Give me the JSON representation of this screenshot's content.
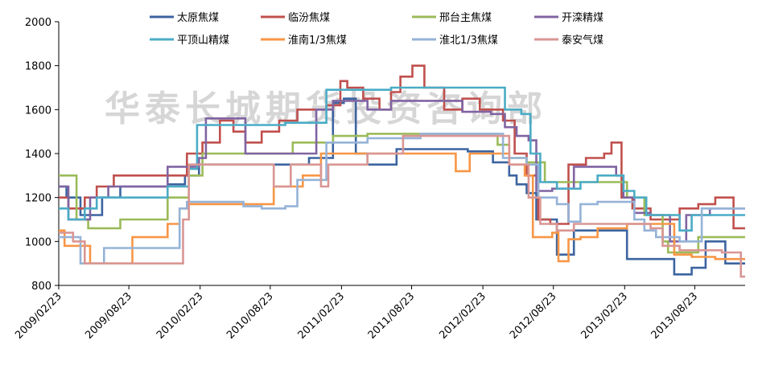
{
  "watermark": "华泰长城期货投资咨询部",
  "chart_data": {
    "type": "line",
    "step": true,
    "ylim": [
      800,
      2000
    ],
    "yticks": [
      800,
      1000,
      1200,
      1400,
      1600,
      1800,
      2000
    ],
    "xlim": [
      "2009-02-23",
      "2013-12-31"
    ],
    "xticks": [
      "2009/02/23",
      "2009/08/23",
      "2010/02/23",
      "2010/08/23",
      "2011/02/23",
      "2011/08/23",
      "2012/02/23",
      "2012/08/23",
      "2013/02/23",
      "2013/08/23"
    ],
    "grid": false,
    "legend": "top",
    "series": [
      {
        "name": "太原焦煤",
        "color": "#3c64a0",
        "points": [
          [
            "2009-02-23",
            1250
          ],
          [
            "2009-03-15",
            1200
          ],
          [
            "2009-04-20",
            1120
          ],
          [
            "2009-06-15",
            1200
          ],
          [
            "2009-08-01",
            1250
          ],
          [
            "2009-12-01",
            1260
          ],
          [
            "2010-01-15",
            1300
          ],
          [
            "2010-02-20",
            1350
          ],
          [
            "2010-08-01",
            1350
          ],
          [
            "2010-10-20",
            1350
          ],
          [
            "2010-12-01",
            1380
          ],
          [
            "2011-02-01",
            1630
          ],
          [
            "2011-03-01",
            1650
          ],
          [
            "2011-04-01",
            1400
          ],
          [
            "2011-05-01",
            1350
          ],
          [
            "2011-07-15",
            1420
          ],
          [
            "2011-10-15",
            1420
          ],
          [
            "2012-01-15",
            1410
          ],
          [
            "2012-03-20",
            1360
          ],
          [
            "2012-05-01",
            1300
          ],
          [
            "2012-05-20",
            1260
          ],
          [
            "2012-06-15",
            1220
          ],
          [
            "2012-07-10",
            1100
          ],
          [
            "2012-09-01",
            940
          ],
          [
            "2012-10-15",
            1050
          ],
          [
            "2013-03-01",
            920
          ],
          [
            "2013-05-20",
            920
          ],
          [
            "2013-07-01",
            850
          ],
          [
            "2013-08-15",
            880
          ],
          [
            "2013-09-20",
            1000
          ],
          [
            "2013-11-10",
            900
          ],
          [
            "2013-12-31",
            900
          ]
        ]
      },
      {
        "name": "临汾焦煤",
        "color": "#c0504d",
        "points": [
          [
            "2009-02-23",
            1200
          ],
          [
            "2009-03-20",
            1150
          ],
          [
            "2009-05-01",
            1200
          ],
          [
            "2009-06-01",
            1250
          ],
          [
            "2009-07-15",
            1300
          ],
          [
            "2009-12-20",
            1300
          ],
          [
            "2010-01-20",
            1400
          ],
          [
            "2010-03-01",
            1450
          ],
          [
            "2010-04-15",
            1550
          ],
          [
            "2010-05-20",
            1500
          ],
          [
            "2010-06-20",
            1450
          ],
          [
            "2010-08-01",
            1500
          ],
          [
            "2010-09-15",
            1550
          ],
          [
            "2010-11-01",
            1600
          ],
          [
            "2011-01-15",
            1620
          ],
          [
            "2011-02-20",
            1730
          ],
          [
            "2011-03-10",
            1700
          ],
          [
            "2011-04-20",
            1650
          ],
          [
            "2011-06-01",
            1600
          ],
          [
            "2011-07-01",
            1680
          ],
          [
            "2011-07-25",
            1750
          ],
          [
            "2011-08-25",
            1800
          ],
          [
            "2011-09-25",
            1700
          ],
          [
            "2011-11-15",
            1600
          ],
          [
            "2012-01-01",
            1650
          ],
          [
            "2012-02-15",
            1600
          ],
          [
            "2012-04-15",
            1550
          ],
          [
            "2012-05-15",
            1400
          ],
          [
            "2012-06-15",
            1300
          ],
          [
            "2012-07-15",
            1100
          ],
          [
            "2012-08-15",
            1080
          ],
          [
            "2012-10-01",
            1350
          ],
          [
            "2012-11-15",
            1380
          ],
          [
            "2013-01-01",
            1400
          ],
          [
            "2013-01-20",
            1450
          ],
          [
            "2013-02-15",
            1200
          ],
          [
            "2013-03-15",
            1150
          ],
          [
            "2013-05-01",
            1100
          ],
          [
            "2013-07-15",
            1150
          ],
          [
            "2013-09-01",
            1170
          ],
          [
            "2013-10-15",
            1200
          ],
          [
            "2013-12-01",
            1060
          ],
          [
            "2013-12-31",
            1060
          ]
        ]
      },
      {
        "name": "邢台主焦煤",
        "color": "#9bbb59",
        "points": [
          [
            "2009-02-23",
            1300
          ],
          [
            "2009-04-10",
            1100
          ],
          [
            "2009-05-10",
            1060
          ],
          [
            "2009-08-01",
            1100
          ],
          [
            "2009-09-15",
            1100
          ],
          [
            "2009-12-01",
            1200
          ],
          [
            "2010-01-25",
            1300
          ],
          [
            "2010-03-01",
            1400
          ],
          [
            "2010-08-01",
            1400
          ],
          [
            "2010-10-20",
            1450
          ],
          [
            "2010-12-01",
            1450
          ],
          [
            "2011-02-01",
            1480
          ],
          [
            "2011-05-01",
            1490
          ],
          [
            "2011-10-01",
            1490
          ],
          [
            "2012-04-01",
            1440
          ],
          [
            "2012-05-01",
            1380
          ],
          [
            "2012-06-15",
            1360
          ],
          [
            "2012-08-01",
            1270
          ],
          [
            "2012-09-01",
            1270
          ],
          [
            "2012-12-01",
            1270
          ],
          [
            "2013-03-01",
            1200
          ],
          [
            "2013-04-15",
            1120
          ],
          [
            "2013-06-01",
            1000
          ],
          [
            "2013-06-15",
            950
          ],
          [
            "2013-09-01",
            1020
          ],
          [
            "2013-12-31",
            1020
          ]
        ]
      },
      {
        "name": "开滦精煤",
        "color": "#8064a2",
        "points": [
          [
            "2009-02-23",
            1250
          ],
          [
            "2009-03-20",
            1100
          ],
          [
            "2009-05-15",
            1200
          ],
          [
            "2009-07-01",
            1250
          ],
          [
            "2009-12-01",
            1340
          ],
          [
            "2010-02-20",
            1380
          ],
          [
            "2010-03-10",
            1560
          ],
          [
            "2010-05-01",
            1560
          ],
          [
            "2010-06-20",
            1400
          ],
          [
            "2010-09-01",
            1400
          ],
          [
            "2010-12-20",
            1600
          ],
          [
            "2011-02-01",
            1640
          ],
          [
            "2011-05-01",
            1600
          ],
          [
            "2011-07-01",
            1640
          ],
          [
            "2011-10-01",
            1640
          ],
          [
            "2012-01-01",
            1590
          ],
          [
            "2012-03-15",
            1580
          ],
          [
            "2012-04-20",
            1520
          ],
          [
            "2012-05-20",
            1480
          ],
          [
            "2012-06-20",
            1460
          ],
          [
            "2012-07-10",
            1230
          ],
          [
            "2012-08-01",
            1230
          ],
          [
            "2012-08-20",
            1240
          ],
          [
            "2012-10-15",
            1340
          ],
          [
            "2013-02-01",
            1300
          ],
          [
            "2013-02-20",
            1200
          ],
          [
            "2013-03-20",
            1130
          ],
          [
            "2013-05-01",
            1120
          ],
          [
            "2013-06-20",
            1000
          ],
          [
            "2013-08-01",
            1120
          ],
          [
            "2013-10-01",
            1150
          ],
          [
            "2013-12-31",
            1150
          ]
        ]
      },
      {
        "name": "平顶山精煤",
        "color": "#4bacc6",
        "points": [
          [
            "2009-02-23",
            1150
          ],
          [
            "2009-03-20",
            1100
          ],
          [
            "2009-05-01",
            1150
          ],
          [
            "2009-06-01",
            1200
          ],
          [
            "2009-12-01",
            1250
          ],
          [
            "2010-01-25",
            1330
          ],
          [
            "2010-02-15",
            1530
          ],
          [
            "2010-06-01",
            1530
          ],
          [
            "2010-08-01",
            1530
          ],
          [
            "2010-10-01",
            1540
          ],
          [
            "2010-12-01",
            1540
          ],
          [
            "2011-01-15",
            1690
          ],
          [
            "2011-03-01",
            1690
          ],
          [
            "2011-07-01",
            1700
          ],
          [
            "2011-10-01",
            1700
          ],
          [
            "2012-02-01",
            1700
          ],
          [
            "2012-04-20",
            1600
          ],
          [
            "2012-06-01",
            1580
          ],
          [
            "2012-06-25",
            1400
          ],
          [
            "2012-07-20",
            1270
          ],
          [
            "2012-09-01",
            1240
          ],
          [
            "2012-11-01",
            1270
          ],
          [
            "2012-12-15",
            1300
          ],
          [
            "2013-02-20",
            1230
          ],
          [
            "2013-03-20",
            1200
          ],
          [
            "2013-04-20",
            1120
          ],
          [
            "2013-06-01",
            1120
          ],
          [
            "2013-07-15",
            1050
          ],
          [
            "2013-08-15",
            1120
          ],
          [
            "2013-12-31",
            1120
          ]
        ]
      },
      {
        "name": "淮南1/3焦煤",
        "color": "#f79646",
        "points": [
          [
            "2009-02-23",
            1050
          ],
          [
            "2009-03-10",
            980
          ],
          [
            "2009-04-10",
            980
          ],
          [
            "2009-05-15",
            900
          ],
          [
            "2009-08-01",
            900
          ],
          [
            "2009-09-01",
            1020
          ],
          [
            "2009-12-01",
            1080
          ],
          [
            "2010-01-01",
            1150
          ],
          [
            "2010-01-25",
            1170
          ],
          [
            "2010-08-01",
            1170
          ],
          [
            "2010-09-01",
            1250
          ],
          [
            "2010-11-15",
            1300
          ],
          [
            "2011-01-01",
            1400
          ],
          [
            "2011-02-15",
            1400
          ],
          [
            "2011-04-01",
            1400
          ],
          [
            "2011-10-01",
            1400
          ],
          [
            "2011-12-15",
            1320
          ],
          [
            "2012-01-20",
            1400
          ],
          [
            "2012-02-15",
            1400
          ],
          [
            "2012-05-01",
            1350
          ],
          [
            "2012-06-10",
            1300
          ],
          [
            "2012-07-01",
            1020
          ],
          [
            "2012-08-20",
            1040
          ],
          [
            "2012-09-05",
            910
          ],
          [
            "2012-10-01",
            1010
          ],
          [
            "2012-11-01",
            1020
          ],
          [
            "2012-12-15",
            1060
          ],
          [
            "2013-03-01",
            1080
          ],
          [
            "2013-06-01",
            1080
          ],
          [
            "2013-07-01",
            940
          ],
          [
            "2013-08-15",
            930
          ],
          [
            "2013-10-15",
            920
          ],
          [
            "2013-12-31",
            920
          ]
        ]
      },
      {
        "name": "淮北1/3焦煤",
        "color": "#95b3d7",
        "points": [
          [
            "2009-02-23",
            1020
          ],
          [
            "2009-04-01",
            1020
          ],
          [
            "2009-04-20",
            900
          ],
          [
            "2009-06-01",
            900
          ],
          [
            "2009-06-20",
            970
          ],
          [
            "2009-12-01",
            970
          ],
          [
            "2010-01-01",
            1150
          ],
          [
            "2010-01-20",
            1180
          ],
          [
            "2010-06-15",
            1160
          ],
          [
            "2010-08-01",
            1150
          ],
          [
            "2010-10-01",
            1160
          ],
          [
            "2010-11-01",
            1280
          ],
          [
            "2011-01-15",
            1450
          ],
          [
            "2011-03-01",
            1450
          ],
          [
            "2011-05-01",
            1470
          ],
          [
            "2011-08-01",
            1470
          ],
          [
            "2011-09-15",
            1490
          ],
          [
            "2012-02-15",
            1490
          ],
          [
            "2012-04-15",
            1380
          ],
          [
            "2012-06-15",
            1350
          ],
          [
            "2012-07-15",
            1200
          ],
          [
            "2012-09-01",
            1170
          ],
          [
            "2012-10-01",
            1090
          ],
          [
            "2012-11-01",
            1170
          ],
          [
            "2012-12-15",
            1180
          ],
          [
            "2013-02-15",
            1180
          ],
          [
            "2013-03-20",
            1100
          ],
          [
            "2013-04-15",
            1050
          ],
          [
            "2013-05-15",
            1020
          ],
          [
            "2013-07-15",
            1000
          ],
          [
            "2013-09-10",
            1150
          ],
          [
            "2013-12-31",
            1150
          ]
        ]
      },
      {
        "name": "泰安气煤",
        "color": "#d99694",
        "points": [
          [
            "2009-02-23",
            1040
          ],
          [
            "2009-04-01",
            1000
          ],
          [
            "2009-05-01",
            900
          ],
          [
            "2009-08-01",
            900
          ],
          [
            "2009-12-01",
            900
          ],
          [
            "2010-01-10",
            1100
          ],
          [
            "2010-01-25",
            1350
          ],
          [
            "2010-08-01",
            1350
          ],
          [
            "2010-09-01",
            1250
          ],
          [
            "2010-10-15",
            1350
          ],
          [
            "2010-11-15",
            1350
          ],
          [
            "2011-01-01",
            1250
          ],
          [
            "2011-01-20",
            1350
          ],
          [
            "2011-03-01",
            1350
          ],
          [
            "2011-05-01",
            1400
          ],
          [
            "2011-08-01",
            1480
          ],
          [
            "2011-11-01",
            1480
          ],
          [
            "2012-02-01",
            1480
          ],
          [
            "2012-05-01",
            1350
          ],
          [
            "2012-06-20",
            1200
          ],
          [
            "2012-07-20",
            1080
          ],
          [
            "2012-09-01",
            1050
          ],
          [
            "2012-10-15",
            1080
          ],
          [
            "2013-01-15",
            1080
          ],
          [
            "2013-03-01",
            1080
          ],
          [
            "2013-05-01",
            1060
          ],
          [
            "2013-06-01",
            980
          ],
          [
            "2013-07-15",
            960
          ],
          [
            "2013-09-01",
            960
          ],
          [
            "2013-11-01",
            950
          ],
          [
            "2013-12-20",
            840
          ],
          [
            "2013-12-31",
            840
          ]
        ]
      }
    ]
  }
}
